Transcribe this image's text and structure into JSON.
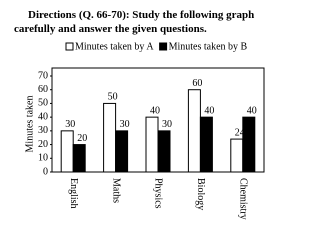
{
  "chart_data": {
    "type": "bar",
    "title": "Directions (Q. 66-70): Study the following graph carefully and answer the given questions.",
    "y_label": "Minutes taken",
    "categories": [
      "English",
      "Maths",
      "Physics",
      "Biology",
      "Chemistry"
    ],
    "series": [
      {
        "name": "Minutes taken by A",
        "color": "#ffffff",
        "values": [
          30,
          50,
          40,
          60,
          24
        ]
      },
      {
        "name": "Minutes taken by B",
        "color": "#000000",
        "values": [
          20,
          30,
          30,
          40,
          40
        ]
      }
    ],
    "ylim": [
      0,
      70
    ],
    "yticks": [
      0,
      10,
      20,
      30,
      40,
      50,
      60,
      70
    ],
    "grid": false,
    "legend": "top"
  }
}
